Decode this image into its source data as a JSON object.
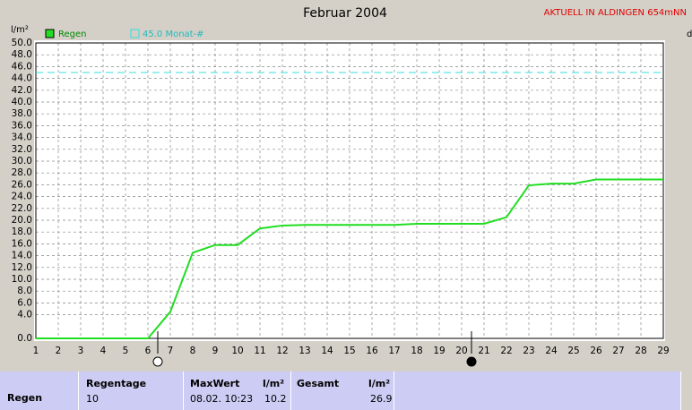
{
  "chart_data": {
    "type": "line",
    "title": "Februar 2004",
    "banner": "AKTUELL IN ALDINGEN 654mNN",
    "y_label": "l/m²",
    "x": [
      1,
      2,
      3,
      4,
      5,
      6,
      7,
      8,
      9,
      10,
      11,
      12,
      13,
      14,
      15,
      16,
      17,
      18,
      19,
      20,
      21,
      22,
      23,
      24,
      25,
      26,
      27,
      28,
      29
    ],
    "series": [
      {
        "name": "Regen",
        "color": "#22dd22",
        "values": [
          0,
          0,
          0,
          0,
          0,
          0,
          4.5,
          14.5,
          15.8,
          15.8,
          18.6,
          19.1,
          19.2,
          19.2,
          19.2,
          19.2,
          19.2,
          19.4,
          19.4,
          19.4,
          19.4,
          20.5,
          25.9,
          26.2,
          26.2,
          26.9,
          26.9,
          26.9,
          26.9
        ]
      }
    ],
    "reference_line": {
      "value": 45,
      "label": "45.0 Monat-#",
      "color": "#33dddd"
    },
    "xlim": [
      1,
      29
    ],
    "xticks": [
      1,
      2,
      3,
      4,
      5,
      6,
      7,
      8,
      9,
      10,
      11,
      12,
      13,
      14,
      15,
      16,
      17,
      18,
      19,
      20,
      21,
      22,
      23,
      24,
      25,
      26,
      27,
      28,
      29
    ],
    "ylim": [
      0,
      50
    ],
    "yticks": [
      {
        "value": 0,
        "label": "0.0"
      },
      {
        "value": 4,
        "label": "4.0"
      },
      {
        "value": 6,
        "label": "6.0"
      },
      {
        "value": 8,
        "label": "8.0"
      },
      {
        "value": 10,
        "label": "10.0"
      },
      {
        "value": 12,
        "label": "12.0"
      },
      {
        "value": 14,
        "label": "14.0"
      },
      {
        "value": 16,
        "label": "16.0"
      },
      {
        "value": 18,
        "label": "18.0"
      },
      {
        "value": 20,
        "label": "20.0"
      },
      {
        "value": 22,
        "label": "22.0"
      },
      {
        "value": 24,
        "label": "24.0"
      },
      {
        "value": 26,
        "label": "26.0"
      },
      {
        "value": 28,
        "label": "28.0"
      },
      {
        "value": 30,
        "label": "30.0"
      },
      {
        "value": 32,
        "label": "32.0"
      },
      {
        "value": 34,
        "label": "34.0"
      },
      {
        "value": 36,
        "label": "36.0"
      },
      {
        "value": 38,
        "label": "38.0"
      },
      {
        "value": 40,
        "label": "40.0"
      },
      {
        "value": 42,
        "label": "42.0"
      },
      {
        "value": 44,
        "label": "44.0"
      },
      {
        "value": 46,
        "label": "46.0"
      },
      {
        "value": 48,
        "label": "48.0"
      },
      {
        "value": 50,
        "label": "50.0"
      }
    ],
    "grid": true
  },
  "summary": {
    "row_label": "Regen",
    "regentage_header": "Regentage",
    "regentage": "10",
    "maxwert_header": "MaxWert",
    "maxwert_unit": "l/m²",
    "maxwert_time": "08.02. 10:23",
    "maxwert": "10.2",
    "gesamt_header": "Gesamt",
    "gesamt_unit": "l/m²",
    "gesamt": "26.9"
  }
}
